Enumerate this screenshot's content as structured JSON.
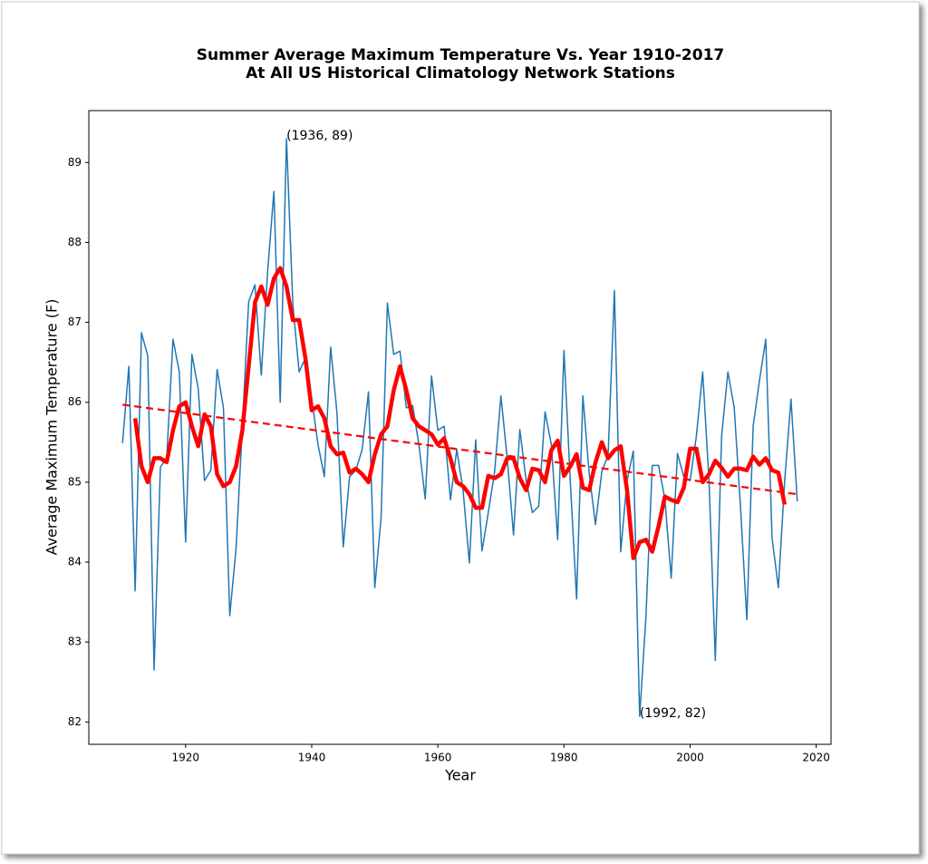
{
  "chart_data": {
    "type": "line",
    "title": "Summer Average Maximum Temperature Vs. Year 1910-2017",
    "subtitle": "At All US Historical Climatology Network Stations",
    "x_label": "Year",
    "y_label": "Average Maximum Temperature (F)",
    "xlim": [
      1904.65,
      2022.35
    ],
    "ylim": [
      81.72,
      89.65
    ],
    "xticks": [
      1920,
      1940,
      1960,
      1980,
      2000,
      2020
    ],
    "yticks": [
      82,
      83,
      84,
      85,
      86,
      87,
      88,
      89
    ],
    "series": [
      {
        "color": "#1f77b4",
        "line_width": 1.5,
        "dash": "solid",
        "x": [
          1910,
          1911,
          1912,
          1913,
          1914,
          1915,
          1916,
          1917,
          1918,
          1919,
          1920,
          1921,
          1922,
          1923,
          1924,
          1925,
          1926,
          1927,
          1928,
          1929,
          1930,
          1931,
          1932,
          1933,
          1934,
          1935,
          1936,
          1937,
          1938,
          1939,
          1940,
          1941,
          1942,
          1943,
          1944,
          1945,
          1946,
          1947,
          1948,
          1949,
          1950,
          1951,
          1952,
          1953,
          1954,
          1955,
          1956,
          1957,
          1958,
          1959,
          1960,
          1961,
          1962,
          1963,
          1964,
          1965,
          1966,
          1967,
          1968,
          1969,
          1970,
          1971,
          1972,
          1973,
          1974,
          1975,
          1976,
          1977,
          1978,
          1979,
          1980,
          1981,
          1982,
          1983,
          1984,
          1985,
          1986,
          1987,
          1988,
          1989,
          1990,
          1991,
          1992,
          1993,
          1994,
          1995,
          1996,
          1997,
          1998,
          1999,
          2000,
          2001,
          2002,
          2003,
          2004,
          2005,
          2006,
          2007,
          2008,
          2009,
          2010,
          2011,
          2012,
          2013,
          2014,
          2015,
          2016,
          2017
        ],
        "values": [
          85.49,
          86.45,
          83.64,
          86.87,
          86.58,
          82.65,
          85.19,
          85.3,
          86.79,
          86.38,
          84.25,
          86.6,
          86.17,
          85.02,
          85.15,
          86.41,
          85.93,
          83.33,
          84.17,
          85.7,
          87.26,
          87.47,
          86.34,
          87.63,
          88.64,
          86.0,
          89.3,
          87.23,
          86.38,
          86.55,
          86.04,
          85.47,
          85.07,
          86.69,
          85.87,
          84.19,
          85.07,
          85.15,
          85.41,
          86.13,
          83.68,
          84.56,
          87.24,
          86.6,
          86.64,
          85.93,
          85.96,
          85.47,
          84.79,
          86.33,
          85.65,
          85.7,
          84.78,
          85.41,
          84.9,
          83.99,
          85.53,
          84.14,
          84.62,
          85.13,
          86.08,
          85.3,
          84.34,
          85.66,
          85.02,
          84.62,
          84.7,
          85.88,
          85.47,
          84.28,
          86.65,
          85.02,
          83.54,
          86.08,
          85.11,
          84.47,
          85.13,
          85.34,
          87.4,
          84.13,
          85.02,
          85.39,
          82.07,
          83.32,
          85.21,
          85.21,
          84.79,
          83.8,
          85.36,
          85.07,
          85.02,
          85.58,
          86.38,
          85.02,
          82.77,
          85.58,
          86.38,
          85.93,
          84.68,
          83.28,
          85.7,
          86.27,
          86.79,
          84.3,
          83.68,
          85.02,
          86.04,
          84.76
        ]
      },
      {
        "color": "#ff0000",
        "line_width": 4.5,
        "dash": "solid",
        "x": [
          1912,
          1913,
          1914,
          1915,
          1916,
          1917,
          1918,
          1919,
          1920,
          1921,
          1922,
          1923,
          1924,
          1925,
          1926,
          1927,
          1928,
          1929,
          1930,
          1931,
          1932,
          1933,
          1934,
          1935,
          1936,
          1937,
          1938,
          1939,
          1940,
          1941,
          1942,
          1943,
          1944,
          1945,
          1946,
          1947,
          1948,
          1949,
          1950,
          1951,
          1952,
          1953,
          1954,
          1955,
          1956,
          1957,
          1958,
          1959,
          1960,
          1961,
          1962,
          1963,
          1964,
          1965,
          1966,
          1967,
          1968,
          1969,
          1970,
          1971,
          1972,
          1973,
          1974,
          1975,
          1976,
          1977,
          1978,
          1979,
          1980,
          1981,
          1982,
          1983,
          1984,
          1985,
          1986,
          1987,
          1988,
          1989,
          1990,
          1991,
          1992,
          1993,
          1994,
          1995,
          1996,
          1997,
          1998,
          1999,
          2000,
          2001,
          2002,
          2003,
          2004,
          2005,
          2006,
          2007,
          2008,
          2009,
          2010,
          2011,
          2012,
          2013,
          2014,
          2015
        ],
        "values": [
          85.8,
          85.2,
          85.0,
          85.3,
          85.3,
          85.25,
          85.65,
          85.95,
          86.0,
          85.7,
          85.45,
          85.85,
          85.7,
          85.1,
          84.95,
          85.0,
          85.2,
          85.65,
          86.45,
          87.25,
          87.45,
          87.22,
          87.55,
          87.68,
          87.45,
          87.03,
          87.03,
          86.55,
          85.9,
          85.95,
          85.8,
          85.45,
          85.35,
          85.37,
          85.12,
          85.17,
          85.1,
          85.0,
          85.35,
          85.6,
          85.7,
          86.15,
          86.45,
          86.15,
          85.8,
          85.7,
          85.65,
          85.6,
          85.47,
          85.55,
          85.3,
          85.0,
          84.95,
          84.85,
          84.68,
          84.68,
          85.08,
          85.05,
          85.1,
          85.3,
          85.3,
          85.05,
          84.9,
          85.17,
          85.15,
          85.0,
          85.4,
          85.52,
          85.08,
          85.2,
          85.35,
          84.93,
          84.9,
          85.25,
          85.5,
          85.3,
          85.4,
          85.45,
          84.9,
          84.05,
          84.25,
          84.28,
          84.13,
          84.45,
          84.82,
          84.78,
          84.75,
          84.93,
          85.42,
          85.42,
          85.0,
          85.1,
          85.27,
          85.18,
          85.07,
          85.17,
          85.17,
          85.15,
          85.32,
          85.22,
          85.3,
          85.15,
          85.12,
          84.72
        ]
      },
      {
        "color": "#ff0000",
        "line_width": 2.2,
        "dash": "dashed",
        "x": [
          1910,
          2017
        ],
        "values": [
          85.97,
          84.85
        ]
      }
    ],
    "annotations": [
      {
        "text": "(1936, 89)",
        "x": 1936,
        "y": 89.3
      },
      {
        "text": "(1992, 82)",
        "x": 1992,
        "y": 82.07
      }
    ]
  }
}
